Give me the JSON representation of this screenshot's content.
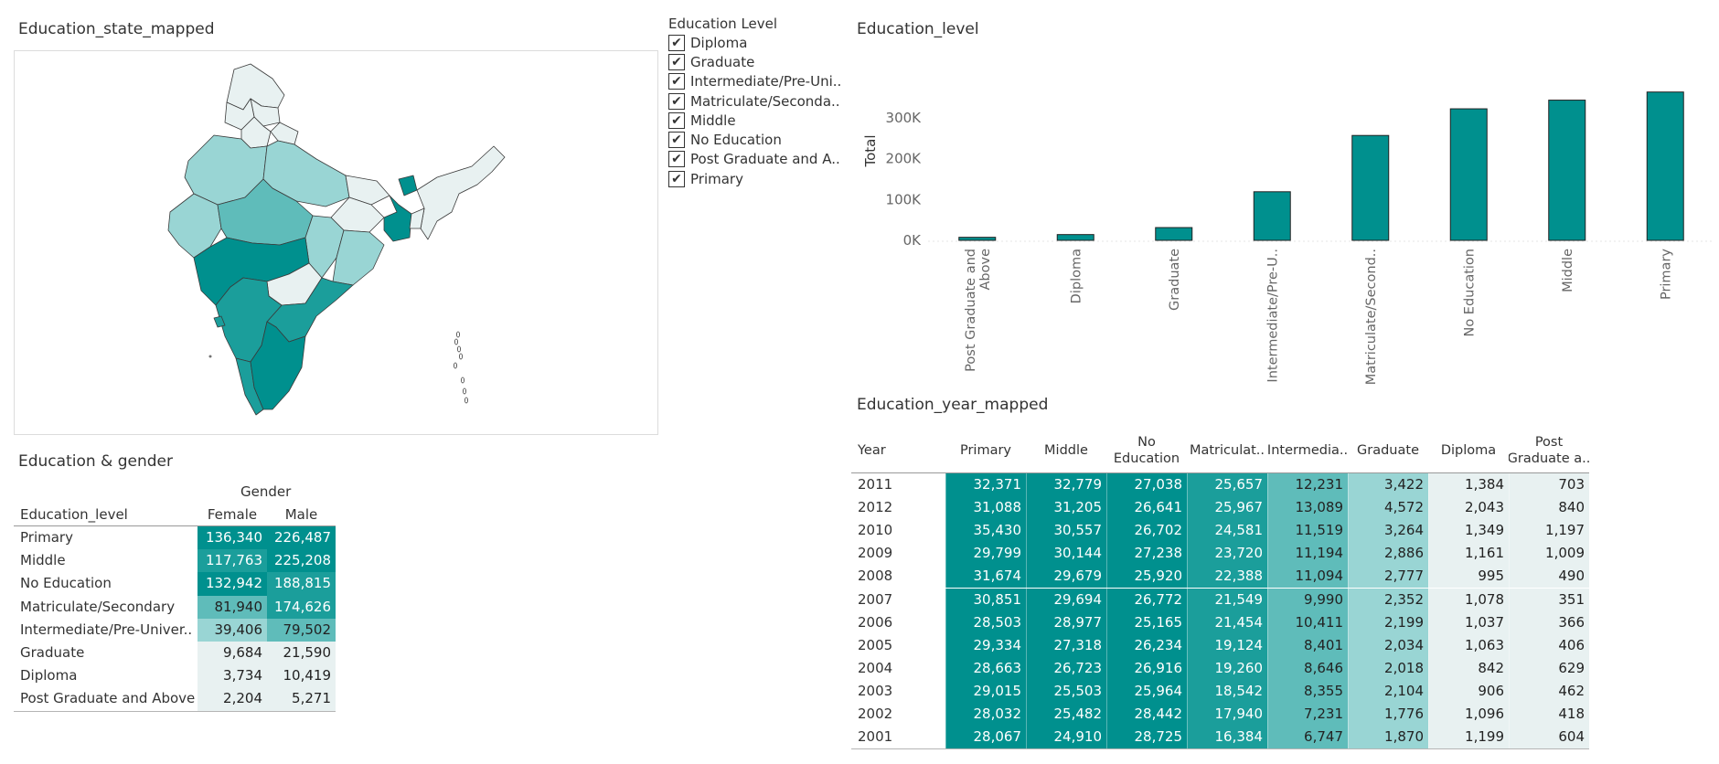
{
  "map": {
    "title": "Education_state_mapped"
  },
  "filter": {
    "title": "Education Level",
    "check_glyph": "✔",
    "items": [
      "Diploma",
      "Graduate",
      "Intermediate/Pre-Uni..",
      "Matriculate/Seconda..",
      "Middle",
      "No Education",
      "Post Graduate and A..",
      "Primary"
    ]
  },
  "colors": {
    "teal": "#00908e",
    "bar_fill": "#00908e",
    "bar_stroke": "#222222",
    "axis_text": "#666666",
    "map_shades": [
      "#e8f1f1",
      "#99d5d4",
      "#5fbcba",
      "#1b9e9b",
      "#00908e"
    ]
  },
  "chart_data": {
    "type": "bar",
    "title": "Education_level",
    "ylabel": "Total",
    "xlabel": "",
    "categories": [
      "Post Graduate and Above",
      "Diploma",
      "Graduate",
      "Intermediate/Pre-U..",
      "Matriculate/Second..",
      "No Education",
      "Middle",
      "Primary"
    ],
    "category_lines": [
      [
        "Post Graduate and",
        "Above"
      ],
      [
        "Diploma"
      ],
      [
        "Graduate"
      ],
      [
        "Intermediate/Pre-U.."
      ],
      [
        "Matriculate/Second.."
      ],
      [
        "No Education"
      ],
      [
        "Middle"
      ],
      [
        "Primary"
      ]
    ],
    "values": [
      7475,
      14153,
      31274,
      118908,
      256566,
      321757,
      342971,
      362827
    ],
    "ylim": [
      0,
      380000
    ],
    "yticks": [
      0,
      100000,
      200000,
      300000
    ],
    "ytick_labels": [
      "0K",
      "100K",
      "200K",
      "300K"
    ],
    "grid": false
  },
  "gender_table": {
    "title": "Education & gender",
    "group_header": "Gender",
    "row_header": "Education_level",
    "columns": [
      "Female",
      "Male"
    ],
    "rows": [
      {
        "label": "Primary",
        "values": [
          "136,340",
          "226,487"
        ],
        "shade": [
          4,
          4
        ]
      },
      {
        "label": "Middle",
        "values": [
          "117,763",
          "225,208"
        ],
        "shade": [
          3,
          4
        ]
      },
      {
        "label": "No Education",
        "values": [
          "132,942",
          "188,815"
        ],
        "shade": [
          4,
          3
        ]
      },
      {
        "label": "Matriculate/Secondary",
        "values": [
          "81,940",
          "174,626"
        ],
        "shade": [
          2,
          3
        ]
      },
      {
        "label": "Intermediate/Pre-Univer..",
        "values": [
          "39,406",
          "79,502"
        ],
        "shade": [
          1,
          2
        ]
      },
      {
        "label": "Graduate",
        "values": [
          "9,684",
          "21,590"
        ],
        "shade": [
          0,
          0
        ]
      },
      {
        "label": "Diploma",
        "values": [
          "3,734",
          "10,419"
        ],
        "shade": [
          0,
          0
        ]
      },
      {
        "label": "Post Graduate and Above",
        "values": [
          "2,204",
          "5,271"
        ],
        "shade": [
          0,
          0
        ]
      }
    ]
  },
  "year_table": {
    "title": "Education_year_mapped",
    "year_header": "Year",
    "columns": [
      [
        "Primary"
      ],
      [
        "Middle"
      ],
      [
        "No",
        "Education"
      ],
      [
        "Matriculat.."
      ],
      [
        "Intermedia.."
      ],
      [
        "Graduate"
      ],
      [
        "Diploma"
      ],
      [
        "Post",
        "Graduate a.."
      ]
    ],
    "column_shades": [
      4,
      4,
      4,
      3,
      2,
      1,
      0,
      0
    ],
    "rows": [
      {
        "year": "2011",
        "values": [
          "32,371",
          "32,779",
          "27,038",
          "25,657",
          "12,231",
          "3,422",
          "1,384",
          "703"
        ]
      },
      {
        "year": "2012",
        "values": [
          "31,088",
          "31,205",
          "26,641",
          "25,967",
          "13,089",
          "4,572",
          "2,043",
          "840"
        ]
      },
      {
        "year": "2010",
        "values": [
          "35,430",
          "30,557",
          "26,702",
          "24,581",
          "11,519",
          "3,264",
          "1,349",
          "1,197"
        ]
      },
      {
        "year": "2009",
        "values": [
          "29,799",
          "30,144",
          "27,238",
          "23,720",
          "11,194",
          "2,886",
          "1,161",
          "1,009"
        ]
      },
      {
        "year": "2008",
        "values": [
          "31,674",
          "29,679",
          "25,920",
          "22,388",
          "11,094",
          "2,777",
          "995",
          "490"
        ]
      },
      {
        "year": "2007",
        "values": [
          "30,851",
          "29,694",
          "26,772",
          "21,549",
          "9,990",
          "2,352",
          "1,078",
          "351"
        ]
      },
      {
        "year": "2006",
        "values": [
          "28,503",
          "28,977",
          "25,165",
          "21,454",
          "10,411",
          "2,199",
          "1,037",
          "366"
        ]
      },
      {
        "year": "2005",
        "values": [
          "29,334",
          "27,318",
          "26,234",
          "19,124",
          "8,401",
          "2,034",
          "1,063",
          "406"
        ]
      },
      {
        "year": "2004",
        "values": [
          "28,663",
          "26,723",
          "26,916",
          "19,260",
          "8,646",
          "2,018",
          "842",
          "629"
        ]
      },
      {
        "year": "2003",
        "values": [
          "29,015",
          "25,503",
          "25,964",
          "18,542",
          "8,355",
          "2,104",
          "906",
          "462"
        ]
      },
      {
        "year": "2002",
        "values": [
          "28,032",
          "25,482",
          "28,442",
          "17,940",
          "7,231",
          "1,776",
          "1,096",
          "418"
        ]
      },
      {
        "year": "2001",
        "values": [
          "28,067",
          "24,910",
          "28,725",
          "16,384",
          "6,747",
          "1,870",
          "1,199",
          "604"
        ]
      }
    ]
  }
}
